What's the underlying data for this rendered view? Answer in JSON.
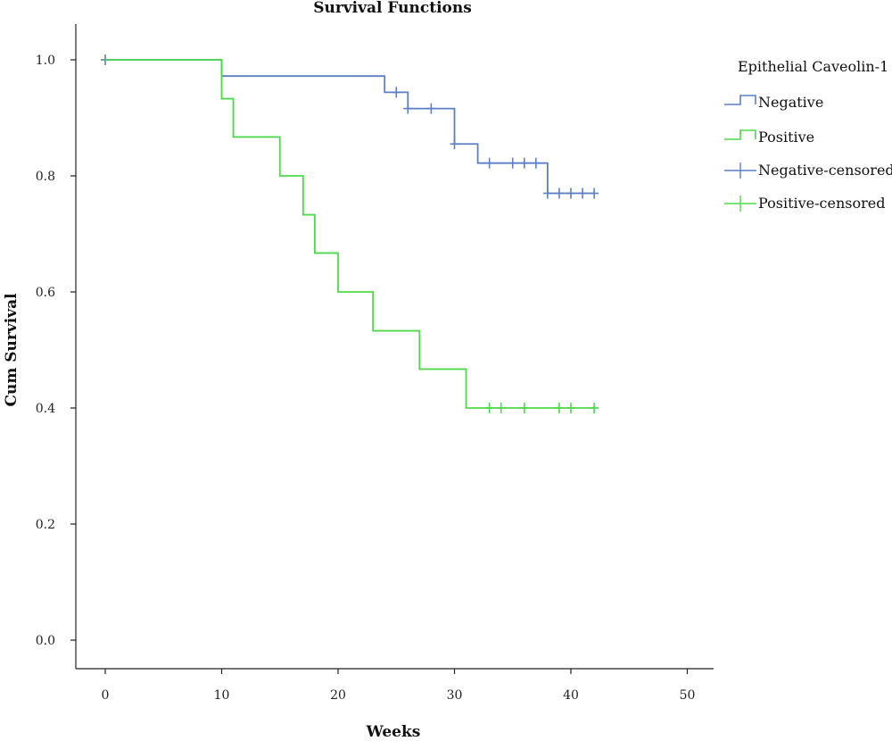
{
  "chart_data": {
    "type": "line",
    "title": "Survival Functions",
    "xlabel": "Weeks",
    "ylabel": "Cum Survival",
    "xlim": [
      -2.5,
      52.5
    ],
    "ylim": [
      -0.05,
      1.05
    ],
    "xticks": [
      0,
      10,
      20,
      30,
      40,
      50
    ],
    "yticks": [
      0.0,
      0.2,
      0.4,
      0.6,
      0.8,
      1.0
    ],
    "ytick_labels": [
      "0.0",
      "0.2",
      "0.4",
      "0.6",
      "0.8",
      "1.0"
    ],
    "grid": false,
    "legend_position": "top-right",
    "legend_title": "Epithelial Caveolin-1",
    "legend_entries": [
      "Negative",
      "Positive",
      "Negative-censored",
      "Positive-censored"
    ],
    "series": [
      {
        "name": "Negative",
        "color": "#5b7fc6",
        "steps": [
          [
            0,
            1.0
          ],
          [
            10,
            0.972
          ],
          [
            24,
            0.944
          ],
          [
            26,
            0.916
          ],
          [
            30,
            0.855
          ],
          [
            32,
            0.822
          ],
          [
            38,
            0.77
          ],
          [
            42,
            0.77
          ]
        ],
        "censored": [
          [
            0,
            1.0
          ],
          [
            25,
            0.944
          ],
          [
            26,
            0.916
          ],
          [
            28,
            0.916
          ],
          [
            30,
            0.855
          ],
          [
            33,
            0.822
          ],
          [
            35,
            0.822
          ],
          [
            36,
            0.822
          ],
          [
            37,
            0.822
          ],
          [
            38,
            0.77
          ],
          [
            39,
            0.77
          ],
          [
            40,
            0.77
          ],
          [
            41,
            0.77
          ],
          [
            42,
            0.77
          ]
        ]
      },
      {
        "name": "Positive",
        "color": "#4fd94a",
        "steps": [
          [
            0,
            1.0
          ],
          [
            10,
            0.933
          ],
          [
            11,
            0.867
          ],
          [
            15,
            0.8
          ],
          [
            17,
            0.733
          ],
          [
            18,
            0.667
          ],
          [
            20,
            0.6
          ],
          [
            23,
            0.533
          ],
          [
            27,
            0.467
          ],
          [
            31,
            0.4
          ],
          [
            42,
            0.4
          ]
        ],
        "censored": [
          [
            33,
            0.4
          ],
          [
            34,
            0.4
          ],
          [
            36,
            0.4
          ],
          [
            39,
            0.4
          ],
          [
            40,
            0.4
          ],
          [
            42,
            0.4
          ]
        ]
      }
    ]
  }
}
